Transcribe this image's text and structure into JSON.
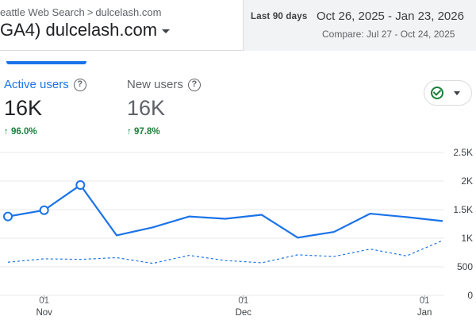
{
  "header": {
    "breadcrumb_parent": "eattle Web Search",
    "breadcrumb_sep": ">",
    "breadcrumb_current": "dulcelash.com",
    "property_name": "GA4) dulcelash.com"
  },
  "date_range": {
    "preset": "Last 90 days",
    "range": "Oct 26, 2025 - Jan 23, 2026",
    "compare": "Compare: Jul 27 - Oct 24, 2025"
  },
  "metrics": {
    "active_users": {
      "label": "Active users",
      "value": "16K",
      "change": "96.0%"
    },
    "new_users": {
      "label": "New users",
      "value": "16K",
      "change": "97.8%"
    }
  },
  "colors": {
    "accent": "#1a73e8",
    "positive": "#188038",
    "comparison_line": "#1a73e8"
  },
  "icons": {
    "help": "question-circle-icon",
    "check": "check-circle-icon",
    "up_arrow": "arrow-up-icon"
  },
  "chart_data": {
    "type": "line",
    "xlabel": "",
    "ylabel": "",
    "ylim": [
      0,
      2500
    ],
    "y_ticks": [
      "2.5K",
      "2K",
      "1.5K",
      "1K",
      "500",
      "0"
    ],
    "x_ticks": [
      {
        "day": "01",
        "month": "Nov"
      },
      {
        "day": "01",
        "month": "Dec"
      },
      {
        "day": "01",
        "month": "Jan"
      }
    ],
    "x_tick_week_index": [
      1,
      6.5,
      11.5
    ],
    "series": [
      {
        "style": "solid",
        "values": [
          1380,
          1490,
          1930,
          1050,
          1190,
          1380,
          1340,
          1410,
          1010,
          1110,
          1430,
          1370,
          1300
        ],
        "markers_at": [
          0,
          1,
          2
        ]
      },
      {
        "style": "dashed",
        "values": [
          580,
          640,
          630,
          660,
          560,
          700,
          610,
          570,
          710,
          680,
          810,
          690,
          960
        ]
      }
    ],
    "grid": true
  }
}
